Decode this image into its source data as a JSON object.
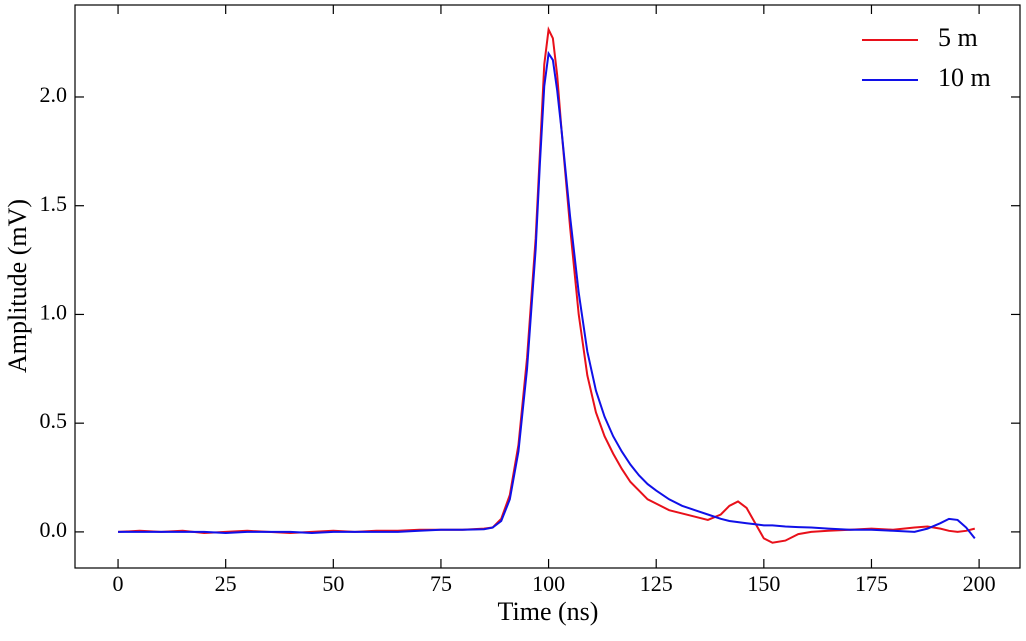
{
  "chart_data": {
    "type": "line",
    "xlabel": "Time (ns)",
    "ylabel": "Amplitude (mV)",
    "x": [
      0,
      5,
      10,
      15,
      20,
      25,
      30,
      35,
      40,
      45,
      50,
      55,
      60,
      65,
      70,
      75,
      80,
      85,
      87,
      89,
      91,
      93,
      95,
      97,
      98,
      99,
      100,
      101,
      102,
      103,
      105,
      107,
      109,
      111,
      113,
      115,
      117,
      119,
      121,
      123,
      125,
      128,
      131,
      134,
      137,
      140,
      142,
      144,
      146,
      148,
      150,
      152,
      155,
      158,
      161,
      165,
      170,
      175,
      180,
      185,
      188,
      191,
      193,
      195,
      197,
      199
    ],
    "series": [
      {
        "name": "5 m",
        "color": "#e8101a",
        "values": [
          0,
          0.005,
          0,
          0.005,
          -0.005,
          0,
          0.005,
          0,
          -0.005,
          0,
          0.005,
          0,
          0.005,
          0.005,
          0.01,
          0.01,
          0.01,
          0.015,
          0.02,
          0.06,
          0.17,
          0.4,
          0.8,
          1.35,
          1.75,
          2.15,
          2.31,
          2.27,
          2.1,
          1.85,
          1.4,
          1.0,
          0.72,
          0.55,
          0.44,
          0.36,
          0.29,
          0.23,
          0.19,
          0.15,
          0.13,
          0.1,
          0.085,
          0.07,
          0.055,
          0.08,
          0.12,
          0.14,
          0.11,
          0.04,
          -0.03,
          -0.05,
          -0.04,
          -0.01,
          0.0,
          0.005,
          0.01,
          0.015,
          0.01,
          0.02,
          0.025,
          0.015,
          0.005,
          0.0,
          0.005,
          0.015
        ]
      },
      {
        "name": "10 m",
        "color": "#1010e8",
        "values": [
          0,
          0,
          0,
          0,
          0,
          -0.005,
          0,
          0,
          0,
          -0.005,
          0,
          0,
          0,
          0,
          0.005,
          0.01,
          0.01,
          0.012,
          0.02,
          0.05,
          0.15,
          0.37,
          0.75,
          1.3,
          1.7,
          2.05,
          2.2,
          2.17,
          2.03,
          1.85,
          1.45,
          1.1,
          0.83,
          0.65,
          0.53,
          0.44,
          0.37,
          0.31,
          0.26,
          0.22,
          0.19,
          0.15,
          0.12,
          0.1,
          0.08,
          0.06,
          0.05,
          0.045,
          0.04,
          0.035,
          0.03,
          0.03,
          0.025,
          0.022,
          0.02,
          0.015,
          0.01,
          0.01,
          0.005,
          0.0,
          0.015,
          0.04,
          0.06,
          0.055,
          0.02,
          -0.03
        ]
      }
    ],
    "xlim": [
      -10,
      209.5
    ],
    "ylim": [
      -0.166,
      2.423
    ],
    "xticks": [
      0,
      25,
      50,
      75,
      100,
      125,
      150,
      175,
      200
    ],
    "yticks": [
      {
        "value": 0,
        "label": "0.0"
      },
      0.5,
      {
        "value": 1,
        "label": "1.0"
      },
      1.5,
      {
        "value": 2,
        "label": "2.0"
      }
    ],
    "legend": "upper right"
  }
}
